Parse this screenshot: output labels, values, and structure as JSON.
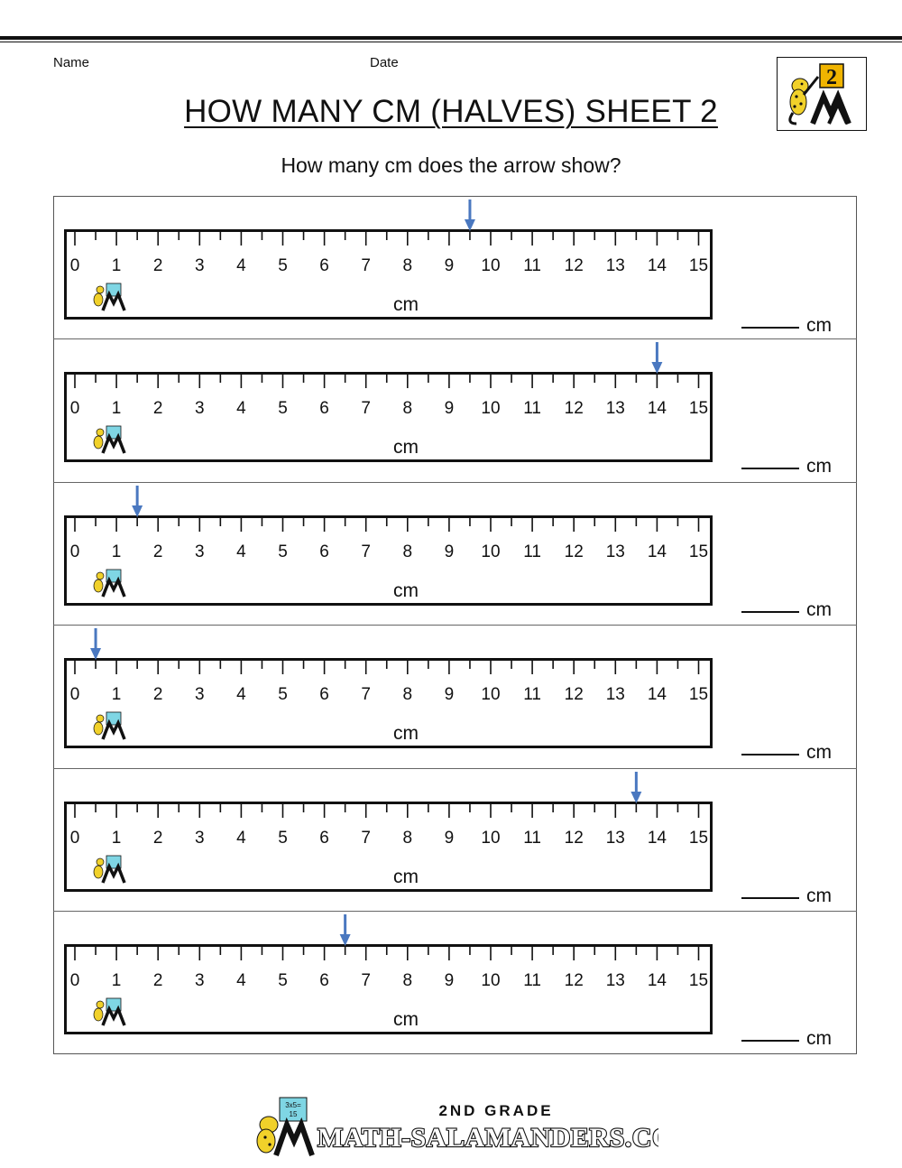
{
  "header": {
    "name_label": "Name",
    "date_label": "Date",
    "title": "HOW MANY CM (HALVES) SHEET 2",
    "instruction": "How many cm does the arrow show?",
    "logo_badge": "2"
  },
  "ruler": {
    "unit_label": "cm",
    "tick_labels": [
      "0",
      "1",
      "2",
      "3",
      "4",
      "5",
      "6",
      "7",
      "8",
      "9",
      "10",
      "11",
      "12",
      "13",
      "14",
      "15"
    ],
    "logo_card_text": "3x5=\n15"
  },
  "questions": [
    {
      "arrow_cm": 9.5,
      "answer_unit": "cm"
    },
    {
      "arrow_cm": 14,
      "answer_unit": "cm"
    },
    {
      "arrow_cm": 1.5,
      "answer_unit": "cm"
    },
    {
      "arrow_cm": 0.5,
      "answer_unit": "cm"
    },
    {
      "arrow_cm": 13.5,
      "answer_unit": "cm"
    },
    {
      "arrow_cm": 6.5,
      "answer_unit": "cm"
    }
  ],
  "footer": {
    "grade_label": "2ND GRADE",
    "site_label": "MATH-SALAMANDERS.COM",
    "card_text": "3x5=\n15"
  },
  "colors": {
    "arrow": "#4a78c0",
    "ink": "#111111",
    "salamander": "#f1d12a",
    "badge": "#f0b400"
  }
}
